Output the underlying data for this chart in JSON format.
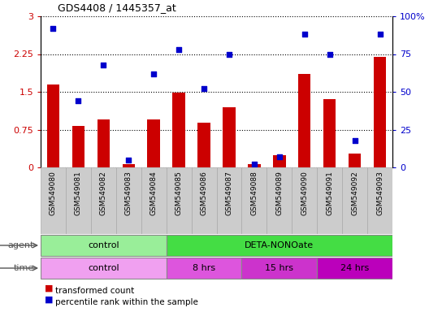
{
  "title": "GDS4408 / 1445357_at",
  "samples": [
    "GSM549080",
    "GSM549081",
    "GSM549082",
    "GSM549083",
    "GSM549084",
    "GSM549085",
    "GSM549086",
    "GSM549087",
    "GSM549088",
    "GSM549089",
    "GSM549090",
    "GSM549091",
    "GSM549092",
    "GSM549093"
  ],
  "bar_values": [
    1.65,
    0.82,
    0.95,
    0.06,
    0.95,
    1.48,
    0.88,
    1.2,
    0.07,
    0.25,
    1.85,
    1.35,
    0.28,
    2.2
  ],
  "dot_values": [
    92,
    44,
    68,
    5,
    62,
    78,
    52,
    75,
    2,
    7,
    88,
    75,
    18,
    88
  ],
  "bar_color": "#cc0000",
  "dot_color": "#0000cc",
  "ylim_left": [
    0,
    3
  ],
  "ylim_right": [
    0,
    100
  ],
  "yticks_left": [
    0,
    0.75,
    1.5,
    2.25,
    3
  ],
  "yticks_right": [
    0,
    25,
    50,
    75,
    100
  ],
  "ytick_labels_left": [
    "0",
    "0.75",
    "1.5",
    "2.25",
    "3"
  ],
  "ytick_labels_right": [
    "0",
    "25",
    "50",
    "75",
    "100%"
  ],
  "agent_groups": [
    {
      "text": "control",
      "start": 0,
      "end": 5,
      "color": "#99ee99"
    },
    {
      "text": "DETA-NONOate",
      "start": 5,
      "end": 14,
      "color": "#44dd44"
    }
  ],
  "time_groups": [
    {
      "text": "control",
      "start": 0,
      "end": 5,
      "color": "#f0a0f0"
    },
    {
      "text": "8 hrs",
      "start": 5,
      "end": 8,
      "color": "#dd55dd"
    },
    {
      "text": "15 hrs",
      "start": 8,
      "end": 11,
      "color": "#cc33cc"
    },
    {
      "text": "24 hrs",
      "start": 11,
      "end": 14,
      "color": "#bb00bb"
    }
  ],
  "legend_bar_label": "transformed count",
  "legend_dot_label": "percentile rank within the sample",
  "left_axis_color": "#cc0000",
  "right_axis_color": "#0000cc",
  "label_color": "#555555",
  "background_color": "#ffffff",
  "plot_bg_color": "#ffffff",
  "xtick_bg_color": "#cccccc",
  "grid_color": "#000000"
}
